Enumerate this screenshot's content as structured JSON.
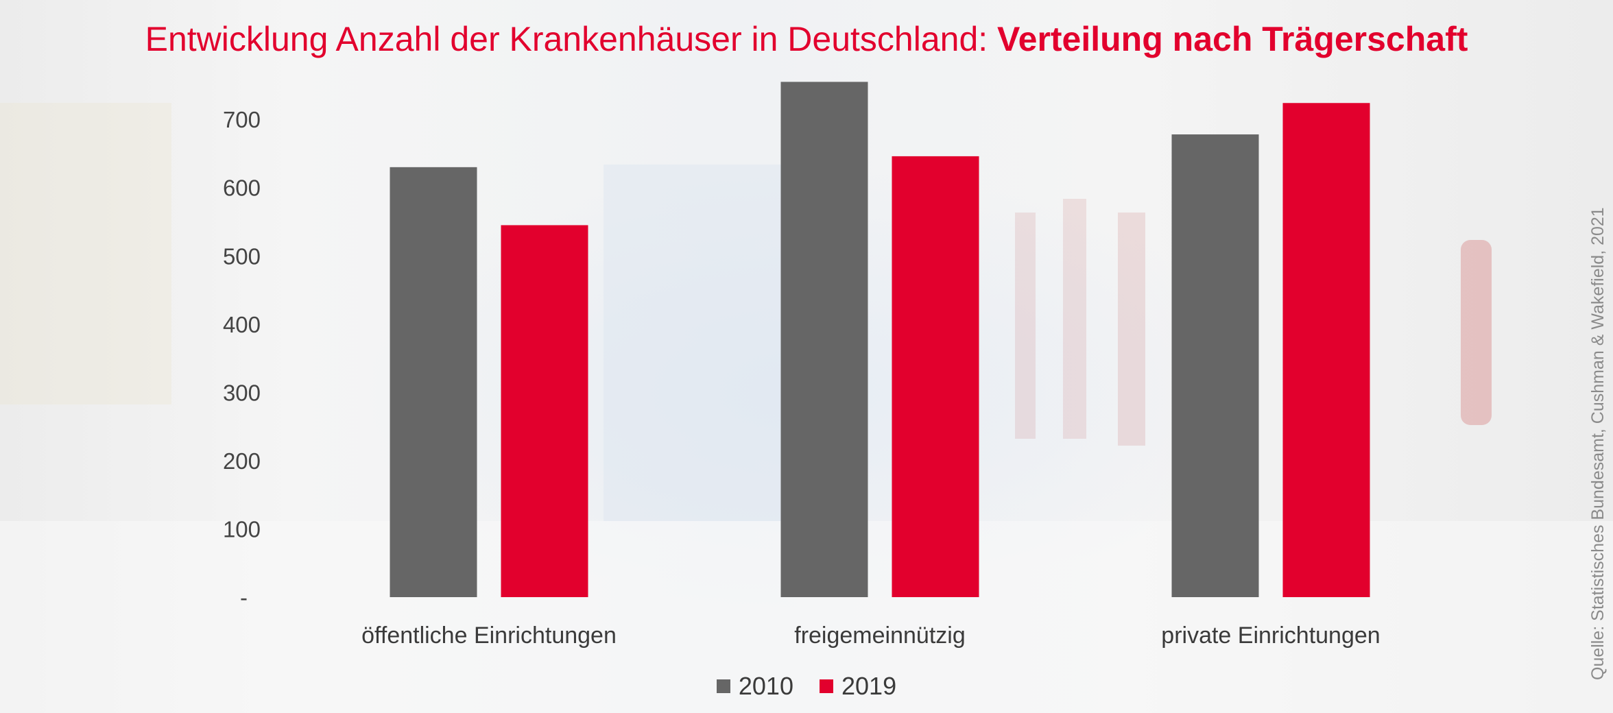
{
  "title": {
    "regular": "Entwicklung Anzahl der Krankenhäuser in Deutschland: ",
    "bold": "Verteilung nach Trägerschaft"
  },
  "source": "Quelle: Statistisches Bundesamt, Cushman & Wakefield, 2021",
  "colors": {
    "series_2010": "#666666",
    "series_2019": "#e2002d",
    "title": "#e2002d"
  },
  "chart_data": {
    "type": "bar",
    "categories": [
      "öffentliche Einrichtungen",
      "freigemeinnützig",
      "private Einrichtungen"
    ],
    "series": [
      {
        "name": "2010",
        "values": [
          630,
          755,
          678
        ]
      },
      {
        "name": "2019",
        "values": [
          545,
          646,
          724
        ]
      }
    ],
    "y_ticks": [
      {
        "value": 0,
        "label": "-"
      },
      {
        "value": 100,
        "label": "100"
      },
      {
        "value": 200,
        "label": "200"
      },
      {
        "value": 300,
        "label": "300"
      },
      {
        "value": 400,
        "label": "400"
      },
      {
        "value": 500,
        "label": "500"
      },
      {
        "value": 600,
        "label": "600"
      },
      {
        "value": 700,
        "label": "700"
      }
    ],
    "ylim": [
      0,
      760
    ],
    "grid": false,
    "legend_position": "bottom-center"
  }
}
